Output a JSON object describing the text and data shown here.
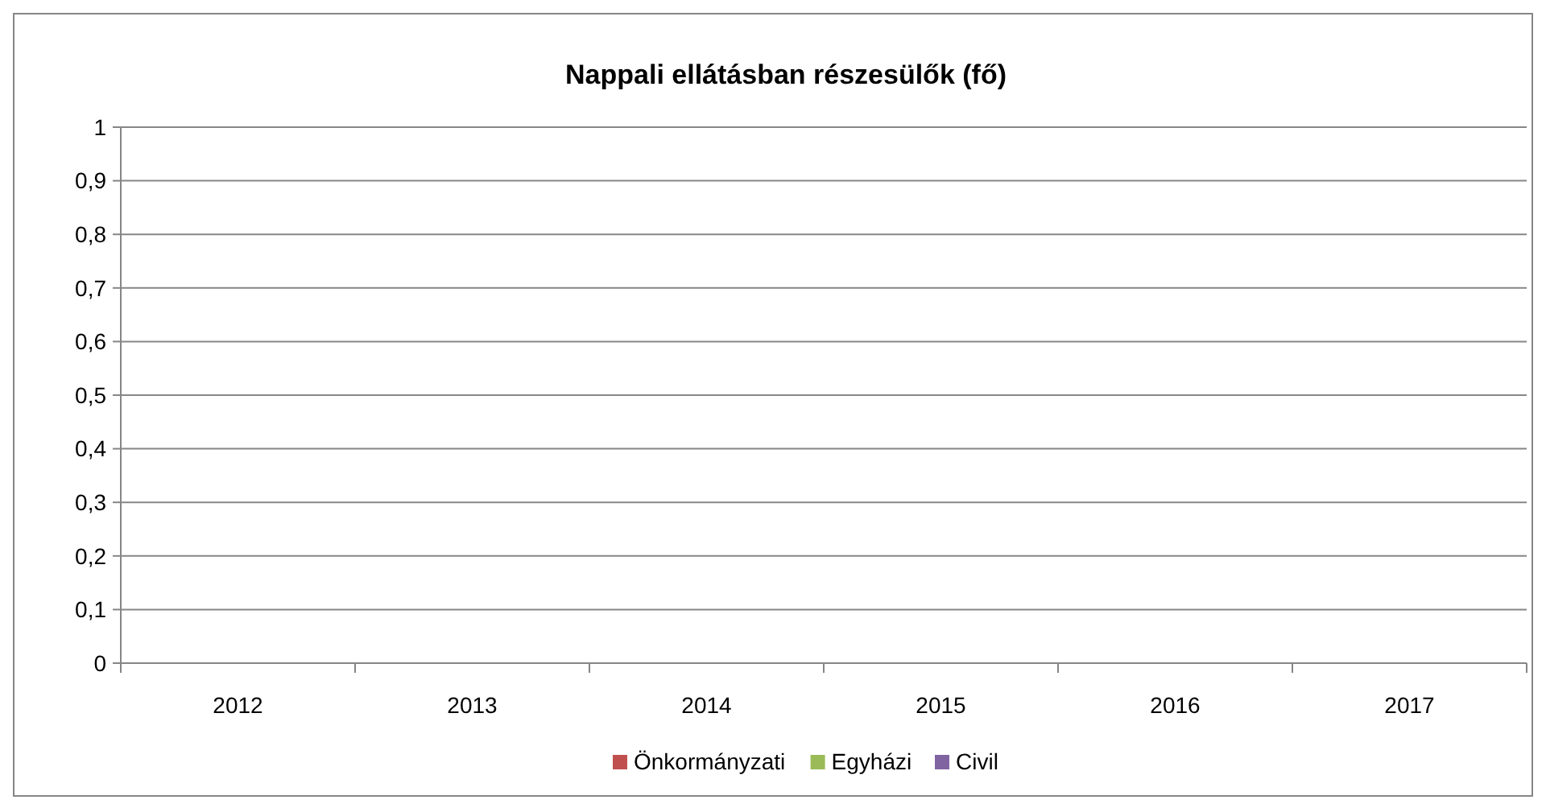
{
  "chart_data": {
    "type": "bar",
    "title": "Nappali ellátásban részesülők (fő)",
    "categories": [
      "2012",
      "2013",
      "2014",
      "2015",
      "2016",
      "2017"
    ],
    "series": [
      {
        "name": "Önkormányzati",
        "color": "#c0504d",
        "values": [
          0,
          0,
          0,
          0,
          0,
          0
        ]
      },
      {
        "name": "Egyházi",
        "color": "#9bbb59",
        "values": [
          0,
          0,
          0,
          0,
          0,
          0
        ]
      },
      {
        "name": "Civil",
        "color": "#8064a2",
        "values": [
          0,
          0,
          0,
          0,
          0,
          0
        ]
      }
    ],
    "ylim": [
      0,
      1
    ],
    "yticks": [
      0,
      {
        "value": 0.1,
        "label": "0,1"
      },
      {
        "value": 0.2,
        "label": "0,2"
      },
      {
        "value": 0.3,
        "label": "0,3"
      },
      {
        "value": 0.4,
        "label": "0,4"
      },
      {
        "value": 0.5,
        "label": "0,5"
      },
      {
        "value": 0.6,
        "label": "0,6"
      },
      {
        "value": 0.7,
        "label": "0,7"
      },
      {
        "value": 0.8,
        "label": "0,8"
      },
      {
        "value": 0.9,
        "label": "0,9"
      },
      1
    ],
    "grid": "y",
    "legend": "bottom"
  }
}
